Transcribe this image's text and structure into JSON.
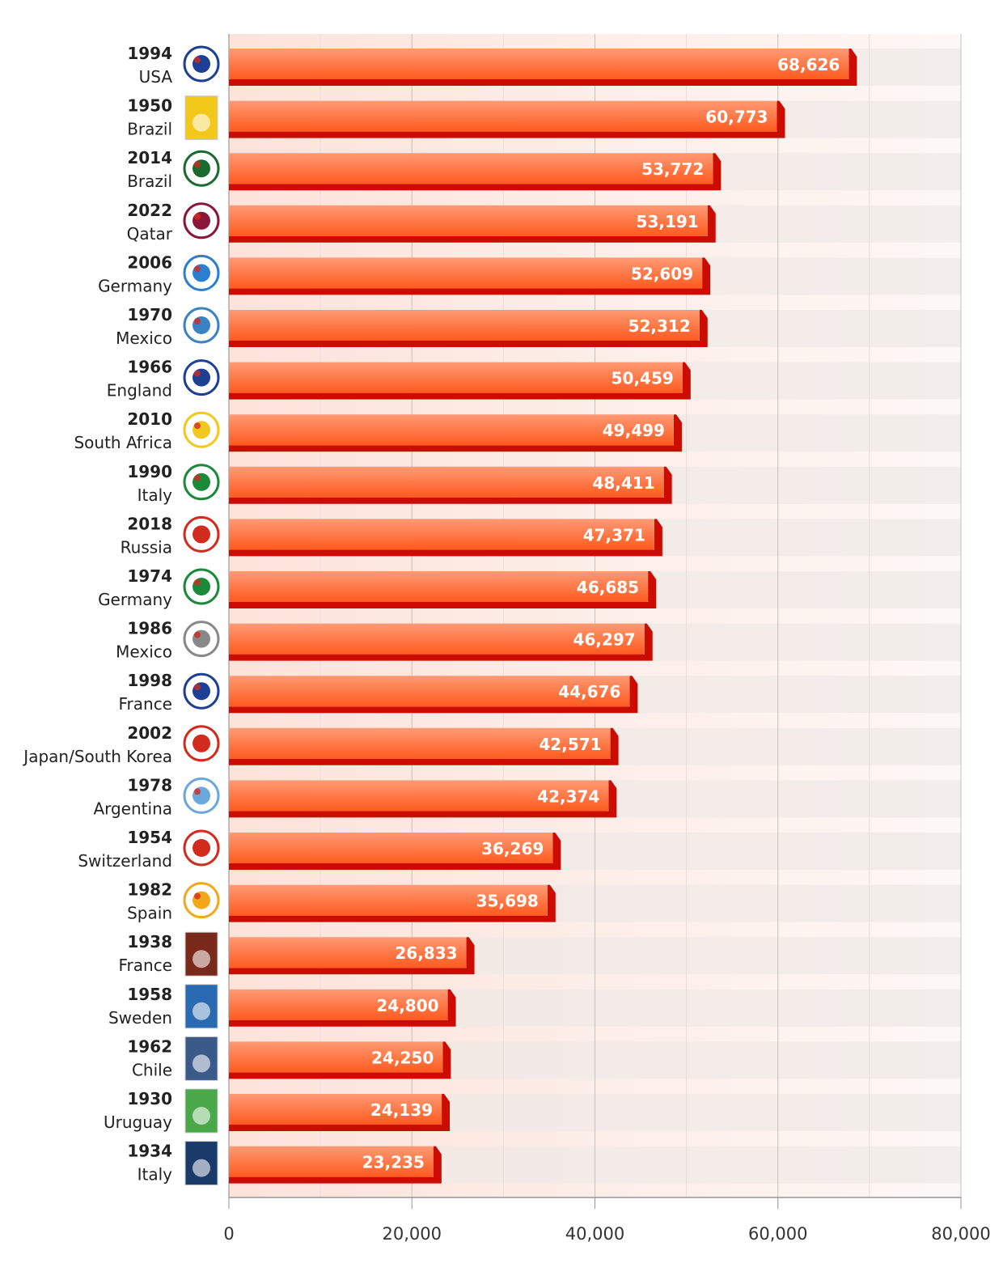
{
  "chart_data": {
    "type": "bar",
    "orientation": "horizontal",
    "title": "",
    "xlabel": "",
    "ylabel": "",
    "xlim": [
      0,
      80000
    ],
    "x_ticks": [
      "0",
      "20,000",
      "40,000",
      "60,000",
      "80,000"
    ],
    "grid": "vertical, major every 20,000 and minor every 10,000",
    "legend": "none",
    "colors": {
      "bar_light": "#ff9a74",
      "bar_mid": "#ff5a1e",
      "bar_dark": "#cc0c00",
      "label": "#ffffff",
      "bg_left": "#fde3da",
      "bg_right": "#fdf8f6",
      "band": "#efe9e7"
    },
    "categories": [
      {
        "year": "1994",
        "host": "USA",
        "value": 68626,
        "label": "68,626",
        "logo": "usa-1994-logo"
      },
      {
        "year": "1950",
        "host": "Brazil",
        "value": 60773,
        "label": "60,773",
        "logo": "brazil-1950-poster"
      },
      {
        "year": "2014",
        "host": "Brazil",
        "value": 53772,
        "label": "53,772",
        "logo": "brazil-2014-logo"
      },
      {
        "year": "2022",
        "host": "Qatar",
        "value": 53191,
        "label": "53,191",
        "logo": "qatar-2022-logo"
      },
      {
        "year": "2006",
        "host": "Germany",
        "value": 52609,
        "label": "52,609",
        "logo": "germany-2006-logo"
      },
      {
        "year": "1970",
        "host": "Mexico",
        "value": 52312,
        "label": "52,312",
        "logo": "mexico-1970-logo"
      },
      {
        "year": "1966",
        "host": "England",
        "value": 50459,
        "label": "50,459",
        "logo": "england-1966-logo"
      },
      {
        "year": "2010",
        "host": "South Africa",
        "value": 49499,
        "label": "49,499",
        "logo": "south-africa-2010-logo"
      },
      {
        "year": "1990",
        "host": "Italy",
        "value": 48411,
        "label": "48,411",
        "logo": "italy-1990-logo"
      },
      {
        "year": "2018",
        "host": "Russia",
        "value": 47371,
        "label": "47,371",
        "logo": "russia-2018-logo"
      },
      {
        "year": "1974",
        "host": "Germany",
        "value": 46685,
        "label": "46,685",
        "logo": "germany-1974-logo"
      },
      {
        "year": "1986",
        "host": "Mexico",
        "value": 46297,
        "label": "46,297",
        "logo": "mexico-1986-logo"
      },
      {
        "year": "1998",
        "host": "France",
        "value": 44676,
        "label": "44,676",
        "logo": "france-1998-logo"
      },
      {
        "year": "2002",
        "host": "Japan/South Korea",
        "value": 42571,
        "label": "42,571",
        "logo": "korea-japan-2002-logo"
      },
      {
        "year": "1978",
        "host": "Argentina",
        "value": 42374,
        "label": "42,374",
        "logo": "argentina-1978-logo"
      },
      {
        "year": "1954",
        "host": "Switzerland",
        "value": 36269,
        "label": "36,269",
        "logo": "switzerland-1954-logo"
      },
      {
        "year": "1982",
        "host": "Spain",
        "value": 35698,
        "label": "35,698",
        "logo": "spain-1982-logo"
      },
      {
        "year": "1938",
        "host": "France",
        "value": 26833,
        "label": "26,833",
        "logo": "france-1938-poster"
      },
      {
        "year": "1958",
        "host": "Sweden",
        "value": 24800,
        "label": "24,800",
        "logo": "sweden-1958-poster"
      },
      {
        "year": "1962",
        "host": "Chile",
        "value": 24250,
        "label": "24,250",
        "logo": "chile-1962-poster"
      },
      {
        "year": "1930",
        "host": "Uruguay",
        "value": 24139,
        "label": "24,139",
        "logo": "uruguay-1930-poster"
      },
      {
        "year": "1934",
        "host": "Italy",
        "value": 23235,
        "label": "23,235",
        "logo": "italy-1934-poster"
      }
    ],
    "logo_colors": [
      "#1d3f94",
      "#f2c81a",
      "#1a6b2f",
      "#8a1538",
      "#2a7fd0",
      "#3b82c4",
      "#1d3f94",
      "#f2c81a",
      "#1a8a3a",
      "#d32a1e",
      "#1a8a3a",
      "#888888",
      "#1d3f94",
      "#d32a1e",
      "#6aa8dc",
      "#d32a1e",
      "#f2a81a",
      "#7a2a1a",
      "#2a6ab0",
      "#3a5a8a",
      "#4aa84a",
      "#1a3a6a"
    ]
  }
}
